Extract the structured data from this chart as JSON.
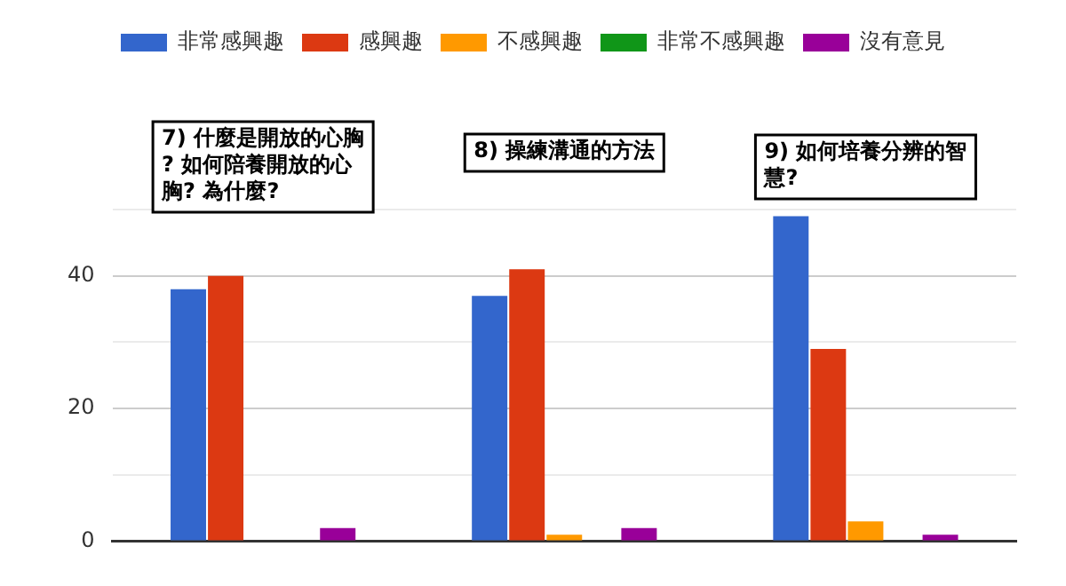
{
  "chart_data": {
    "type": "bar",
    "categories": [
      "7) 什麼是開放的心胸? 如何陪養開放的心胸? 為什麼?",
      "8) 操練溝通的方法",
      "9) 如何培養分辨的智慧?"
    ],
    "series": [
      {
        "name": "非常感興趣",
        "color": "#3366cc",
        "values": [
          38,
          37,
          49
        ]
      },
      {
        "name": "感興趣",
        "color": "#dc3912",
        "values": [
          40,
          41,
          29
        ]
      },
      {
        "name": "不感興趣",
        "color": "#ff9900",
        "values": [
          0,
          1,
          3
        ]
      },
      {
        "name": "非常不感興趣",
        "color": "#109618",
        "values": [
          0,
          0,
          0
        ]
      },
      {
        "name": "沒有意見",
        "color": "#990099",
        "values": [
          2,
          2,
          1
        ]
      }
    ],
    "ylim": [
      0,
      50
    ],
    "yticks": [
      0,
      {
        "value": 10,
        "label": null
      },
      20,
      {
        "value": 30,
        "label": null
      },
      40,
      {
        "value": 50,
        "label": null
      }
    ],
    "grid": "y",
    "legend": "top",
    "tick_labels": "y"
  }
}
